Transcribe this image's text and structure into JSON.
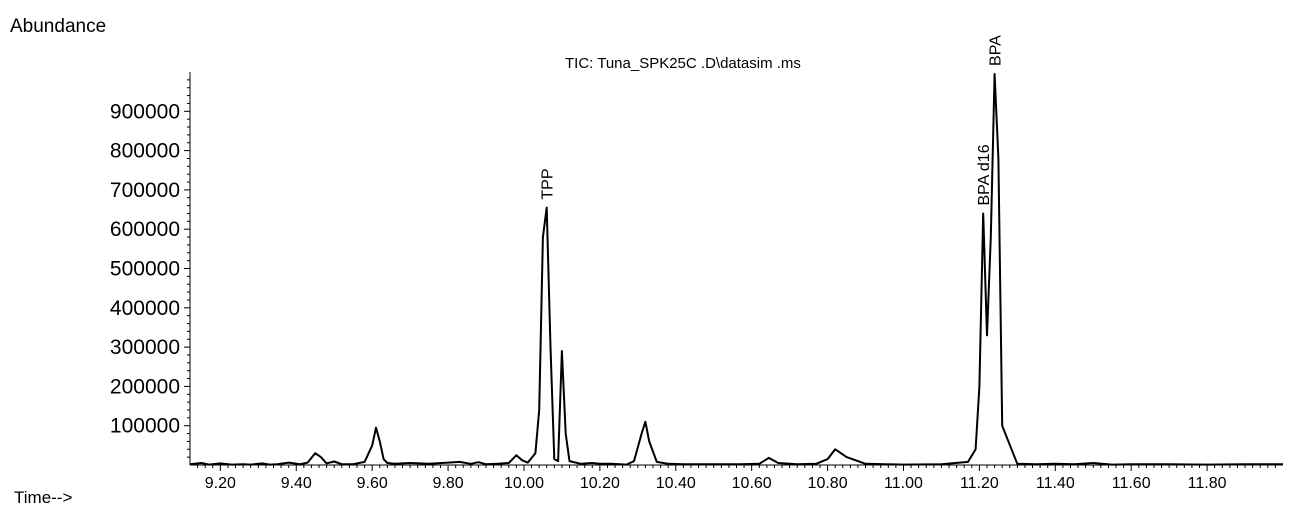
{
  "chart_data": {
    "type": "line",
    "title": "TIC: Tuna_SPK25C   .D\\datasim  .ms",
    "ylabel": "Abundance",
    "xlabel": "Time-->",
    "xlim": [
      9.12,
      12.0
    ],
    "ylim": [
      0,
      1000000
    ],
    "x_ticks": [
      "9.20",
      "9.40",
      "9.60",
      "9.80",
      "10.00",
      "10.20",
      "10.40",
      "10.60",
      "10.80",
      "11.00",
      "11.20",
      "11.40",
      "11.60",
      "11.80"
    ],
    "y_ticks": [
      "100000",
      "200000",
      "300000",
      "400000",
      "500000",
      "600000",
      "700000",
      "800000",
      "900000"
    ],
    "series": [
      {
        "x": [
          9.12,
          9.15,
          9.17,
          9.2,
          9.23,
          9.26,
          9.28,
          9.31,
          9.33,
          9.35,
          9.38,
          9.41,
          9.43,
          9.45,
          9.465,
          9.48,
          9.5,
          9.52,
          9.55,
          9.58,
          9.6,
          9.61,
          9.62,
          9.63,
          9.64,
          9.66,
          9.7,
          9.75,
          9.8,
          9.83,
          9.86,
          9.88,
          9.9,
          9.93,
          9.96,
          9.98,
          9.995,
          10.01,
          10.03,
          10.04,
          10.05,
          10.06,
          10.07,
          10.08,
          10.09,
          10.1,
          10.11,
          10.12,
          10.15,
          10.18,
          10.2,
          10.23,
          10.27,
          10.29,
          10.31,
          10.32,
          10.33,
          10.35,
          10.38,
          10.42,
          10.5,
          10.57,
          10.62,
          10.645,
          10.67,
          10.72,
          10.77,
          10.8,
          10.82,
          10.85,
          10.9,
          11.0,
          11.1,
          11.17,
          11.19,
          11.2,
          11.21,
          11.22,
          11.23,
          11.24,
          11.25,
          11.26,
          11.3,
          11.35,
          11.4,
          11.45,
          11.5,
          11.55,
          11.6,
          11.7,
          11.8,
          11.9,
          12.0
        ],
        "y": [
          2000,
          5000,
          1000,
          4000,
          1000,
          2000,
          1000,
          4000,
          1000,
          2000,
          6000,
          2000,
          6000,
          30000,
          20000,
          4000,
          9000,
          2000,
          2000,
          8000,
          50000,
          95000,
          60000,
          15000,
          5000,
          3000,
          5000,
          3000,
          6000,
          8000,
          3000,
          7000,
          2000,
          3000,
          5000,
          25000,
          12000,
          6000,
          30000,
          140000,
          580000,
          655000,
          300000,
          15000,
          10000,
          290000,
          80000,
          10000,
          3000,
          5000,
          3000,
          3000,
          1000,
          10000,
          80000,
          110000,
          60000,
          8000,
          3000,
          2000,
          2000,
          2000,
          3000,
          18000,
          5000,
          2000,
          3000,
          15000,
          40000,
          20000,
          3000,
          1000,
          2000,
          8000,
          40000,
          200000,
          640000,
          330000,
          580000,
          995000,
          780000,
          100000,
          3000,
          2000,
          3000,
          2000,
          5000,
          1000,
          2000,
          2000,
          1000,
          2000,
          2000
        ]
      }
    ],
    "annotations": [
      {
        "text": "TPP",
        "x": 10.06
      },
      {
        "text": "BPA d16",
        "x": 11.21
      },
      {
        "text": "BPA",
        "x": 11.24
      }
    ]
  }
}
